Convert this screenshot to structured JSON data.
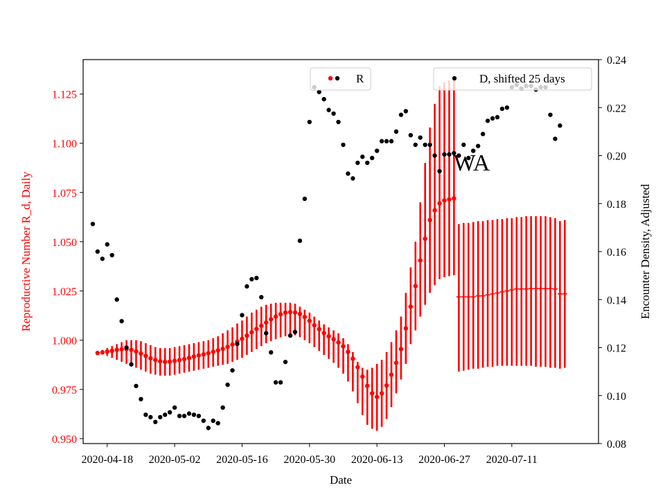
{
  "chart_data": {
    "type": "scatter",
    "annotation": "WA",
    "xlabel": "Date",
    "ylabel_left": "Reproductive Number R_d, Daily",
    "ylabel_right": "Encounter Density, Adjusted",
    "x_tick_labels": [
      "2020-04-18",
      "2020-05-02",
      "2020-05-16",
      "2020-05-30",
      "2020-06-13",
      "2020-06-27",
      "2020-07-11"
    ],
    "y_left_ticks": [
      "0.950",
      "0.975",
      "1.000",
      "1.025",
      "1.050",
      "1.075",
      "1.100",
      "1.125"
    ],
    "y_right_ticks": [
      "0.08",
      "0.10",
      "0.12",
      "0.14",
      "0.16",
      "0.18",
      "0.20",
      "0.22",
      "0.24"
    ],
    "xlim": [
      "2020-04-13",
      "2020-07-29"
    ],
    "ylim_left": [
      0.9475,
      1.1425
    ],
    "ylim_right": [
      0.08,
      0.24
    ],
    "legend_r_label": "R",
    "legend_d_label": "D, shifted 25 days",
    "colors": {
      "r": "#ff0000",
      "d": "#000000"
    },
    "r_dates": [
      "2020-04-16",
      "2020-04-17",
      "2020-04-18",
      "2020-04-19",
      "2020-04-20",
      "2020-04-21",
      "2020-04-22",
      "2020-04-23",
      "2020-04-24",
      "2020-04-25",
      "2020-04-26",
      "2020-04-27",
      "2020-04-28",
      "2020-04-29",
      "2020-04-30",
      "2020-05-01",
      "2020-05-02",
      "2020-05-03",
      "2020-05-04",
      "2020-05-05",
      "2020-05-06",
      "2020-05-07",
      "2020-05-08",
      "2020-05-09",
      "2020-05-10",
      "2020-05-11",
      "2020-05-12",
      "2020-05-13",
      "2020-05-14",
      "2020-05-15",
      "2020-05-16",
      "2020-05-17",
      "2020-05-18",
      "2020-05-19",
      "2020-05-20",
      "2020-05-21",
      "2020-05-22",
      "2020-05-23",
      "2020-05-24",
      "2020-05-25",
      "2020-05-26",
      "2020-05-27",
      "2020-05-28",
      "2020-05-29",
      "2020-05-30",
      "2020-05-31",
      "2020-06-01",
      "2020-06-02",
      "2020-06-03",
      "2020-06-04",
      "2020-06-05",
      "2020-06-06",
      "2020-06-07",
      "2020-06-08",
      "2020-06-09",
      "2020-06-10",
      "2020-06-11",
      "2020-06-12",
      "2020-06-13",
      "2020-06-14",
      "2020-06-15",
      "2020-06-16",
      "2020-06-17",
      "2020-06-18",
      "2020-06-19",
      "2020-06-20",
      "2020-06-21",
      "2020-06-22",
      "2020-06-23",
      "2020-06-24",
      "2020-06-25",
      "2020-06-26",
      "2020-06-27",
      "2020-06-28",
      "2020-06-29"
    ],
    "r_values": [
      0.9935,
      0.9938,
      0.9942,
      0.9946,
      0.9951,
      0.9954,
      0.9955,
      0.9951,
      0.9943,
      0.9932,
      0.992,
      0.9908,
      0.9899,
      0.9893,
      0.989,
      0.9891,
      0.9895,
      0.9899,
      0.9904,
      0.991,
      0.9917,
      0.9923,
      0.9928,
      0.9934,
      0.9941,
      0.9948,
      0.9956,
      0.9966,
      0.9978,
      0.9993,
      1.0007,
      1.0023,
      1.004,
      1.0057,
      1.0073,
      1.009,
      1.0106,
      1.012,
      1.0132,
      1.014,
      1.0143,
      1.0141,
      1.0133,
      1.0118,
      1.0098,
      1.0076,
      1.0056,
      1.0036,
      1.002,
      1.0005,
      0.9989,
      0.9969,
      0.9941,
      0.9906,
      0.9863,
      0.9815,
      0.9768,
      0.973,
      0.9712,
      0.973,
      0.977,
      0.9825,
      0.9885,
      0.9955,
      1.006,
      1.017,
      1.0275,
      1.0405,
      1.0515,
      1.061,
      1.066,
      1.0695,
      1.071,
      1.0715,
      1.072
    ],
    "r_err_lower": [
      0.993,
      0.993,
      0.992,
      0.991,
      0.99,
      0.989,
      0.988,
      0.987,
      0.986,
      0.985,
      0.984,
      0.983,
      0.9825,
      0.982,
      0.982,
      0.982,
      0.9825,
      0.983,
      0.9835,
      0.984,
      0.9845,
      0.985,
      0.9855,
      0.986,
      0.9865,
      0.987,
      0.9875,
      0.988,
      0.989,
      0.99,
      0.991,
      0.9925,
      0.994,
      0.9955,
      0.997,
      0.9985,
      0.9995,
      1.0005,
      1.0015,
      1.002,
      1.0025,
      1.0025,
      1.0015,
      1.0,
      0.9985,
      0.9965,
      0.9945,
      0.9925,
      0.9905,
      0.9885,
      0.986,
      0.983,
      0.979,
      0.974,
      0.968,
      0.962,
      0.957,
      0.955,
      0.954,
      0.956,
      0.96,
      0.966,
      0.973,
      0.98,
      0.988,
      0.998,
      1.005,
      1.012,
      1.018,
      1.024,
      1.028,
      1.031,
      1.032,
      1.0325,
      1.033
    ],
    "r_err_upper": [
      0.994,
      0.995,
      0.996,
      0.997,
      0.998,
      0.999,
      1.0,
      1.0,
      1.0,
      0.9995,
      0.9985,
      0.9975,
      0.9965,
      0.996,
      0.996,
      0.996,
      0.9965,
      0.997,
      0.9975,
      0.998,
      0.9985,
      0.999,
      0.9995,
      1.0,
      1.001,
      1.002,
      1.0035,
      1.005,
      1.0065,
      1.0085,
      1.01,
      1.012,
      1.014,
      1.0155,
      1.017,
      1.018,
      1.0185,
      1.019,
      1.019,
      1.019,
      1.019,
      1.0185,
      1.017,
      1.0155,
      1.014,
      1.012,
      1.01,
      1.008,
      1.0065,
      1.005,
      1.0035,
      1.001,
      0.998,
      0.994,
      0.989,
      0.986,
      0.985,
      0.986,
      0.988,
      0.99,
      0.994,
      0.999,
      1.005,
      1.012,
      1.024,
      1.037,
      1.05,
      1.07,
      1.09,
      1.108,
      1.12,
      1.129,
      1.131,
      1.132,
      1.1325
    ],
    "r_forecast_dates": [
      "2020-06-30",
      "2020-07-01",
      "2020-07-02",
      "2020-07-03",
      "2020-07-04",
      "2020-07-05",
      "2020-07-06",
      "2020-07-07",
      "2020-07-08",
      "2020-07-09",
      "2020-07-10",
      "2020-07-11",
      "2020-07-12",
      "2020-07-13",
      "2020-07-14",
      "2020-07-15",
      "2020-07-16",
      "2020-07-17",
      "2020-07-18",
      "2020-07-19",
      "2020-07-20",
      "2020-07-21",
      "2020-07-22"
    ],
    "r_forecast_values": [
      1.022,
      1.022,
      1.022,
      1.022,
      1.0225,
      1.0225,
      1.023,
      1.0235,
      1.024,
      1.0245,
      1.025,
      1.0255,
      1.026,
      1.026,
      1.026,
      1.0262,
      1.0262,
      1.0262,
      1.0262,
      1.0262,
      1.026,
      1.0235,
      1.0235
    ],
    "r_forecast_lower": [
      0.984,
      0.9845,
      0.985,
      0.9855,
      0.9855,
      0.986,
      0.9865,
      0.9865,
      0.987,
      0.987,
      0.987,
      0.987,
      0.987,
      0.987,
      0.987,
      0.987,
      0.9865,
      0.9865,
      0.9865,
      0.986,
      0.986,
      0.9855,
      0.986
    ],
    "r_forecast_upper": [
      1.059,
      1.0595,
      1.0595,
      1.06,
      1.0605,
      1.0605,
      1.061,
      1.061,
      1.0615,
      1.0615,
      1.062,
      1.062,
      1.0625,
      1.0625,
      1.063,
      1.063,
      1.063,
      1.063,
      1.063,
      1.0625,
      1.062,
      1.0605,
      1.061
    ],
    "d_dates": [
      "2020-04-15",
      "2020-04-16",
      "2020-04-17",
      "2020-04-18",
      "2020-04-19",
      "2020-04-20",
      "2020-04-21",
      "2020-04-22",
      "2020-04-23",
      "2020-04-24",
      "2020-04-25",
      "2020-04-26",
      "2020-04-27",
      "2020-04-28",
      "2020-04-29",
      "2020-04-30",
      "2020-05-01",
      "2020-05-02",
      "2020-05-03",
      "2020-05-04",
      "2020-05-05",
      "2020-05-06",
      "2020-05-07",
      "2020-05-08",
      "2020-05-09",
      "2020-05-10",
      "2020-05-11",
      "2020-05-12",
      "2020-05-13",
      "2020-05-14",
      "2020-05-15",
      "2020-05-16",
      "2020-05-17",
      "2020-05-18",
      "2020-05-19",
      "2020-05-20",
      "2020-05-21",
      "2020-05-22",
      "2020-05-23",
      "2020-05-24",
      "2020-05-25",
      "2020-05-26",
      "2020-05-27",
      "2020-05-28",
      "2020-05-29",
      "2020-05-30",
      "2020-05-31",
      "2020-06-01",
      "2020-06-02",
      "2020-06-03",
      "2020-06-04",
      "2020-06-05",
      "2020-06-06",
      "2020-06-07",
      "2020-06-08",
      "2020-06-09",
      "2020-06-10",
      "2020-06-11",
      "2020-06-12",
      "2020-06-13",
      "2020-06-14",
      "2020-06-15",
      "2020-06-16",
      "2020-06-17",
      "2020-06-18",
      "2020-06-19",
      "2020-06-20",
      "2020-06-21",
      "2020-06-22",
      "2020-06-23",
      "2020-06-24",
      "2020-06-25",
      "2020-06-26",
      "2020-06-27",
      "2020-06-28",
      "2020-06-29",
      "2020-06-30",
      "2020-07-01",
      "2020-07-02",
      "2020-07-03",
      "2020-07-04",
      "2020-07-05",
      "2020-07-06",
      "2020-07-07",
      "2020-07-08",
      "2020-07-09",
      "2020-07-10",
      "2020-07-11",
      "2020-07-12",
      "2020-07-13",
      "2020-07-14",
      "2020-07-15",
      "2020-07-16",
      "2020-07-17",
      "2020-07-18",
      "2020-07-19",
      "2020-07-20",
      "2020-07-21"
    ],
    "d_values": [
      0.1715,
      0.16,
      0.157,
      0.163,
      0.1585,
      0.14,
      0.131,
      0.12,
      0.113,
      0.104,
      0.0985,
      0.092,
      0.091,
      0.089,
      0.091,
      0.092,
      0.093,
      0.095,
      0.0915,
      0.0915,
      0.0925,
      0.092,
      0.0915,
      0.0895,
      0.0865,
      0.0895,
      0.0885,
      0.095,
      0.1045,
      0.1105,
      0.1215,
      0.1335,
      0.1455,
      0.1485,
      0.149,
      0.141,
      0.126,
      0.118,
      0.1055,
      0.1055,
      0.114,
      0.125,
      0.1265,
      0.1645,
      0.182,
      0.214,
      0.2285,
      0.2265,
      0.2235,
      0.219,
      0.2175,
      0.214,
      0.2045,
      0.1925,
      0.1905,
      0.197,
      0.1995,
      0.197,
      0.199,
      0.202,
      0.206,
      0.206,
      0.206,
      0.21,
      0.217,
      0.2185,
      0.2085,
      0.2045,
      0.2075,
      0.2045,
      0.2045,
      0.2,
      0.1935,
      0.2005,
      0.2005,
      0.201,
      0.2,
      0.2045,
      0.199,
      0.202,
      0.204,
      0.209,
      0.2145,
      0.2155,
      0.216,
      0.2195,
      0.22,
      0.2285,
      0.2295,
      0.228,
      0.229,
      0.229,
      0.2275,
      0.2285,
      0.2285,
      0.217,
      0.207,
      0.2125
    ]
  }
}
